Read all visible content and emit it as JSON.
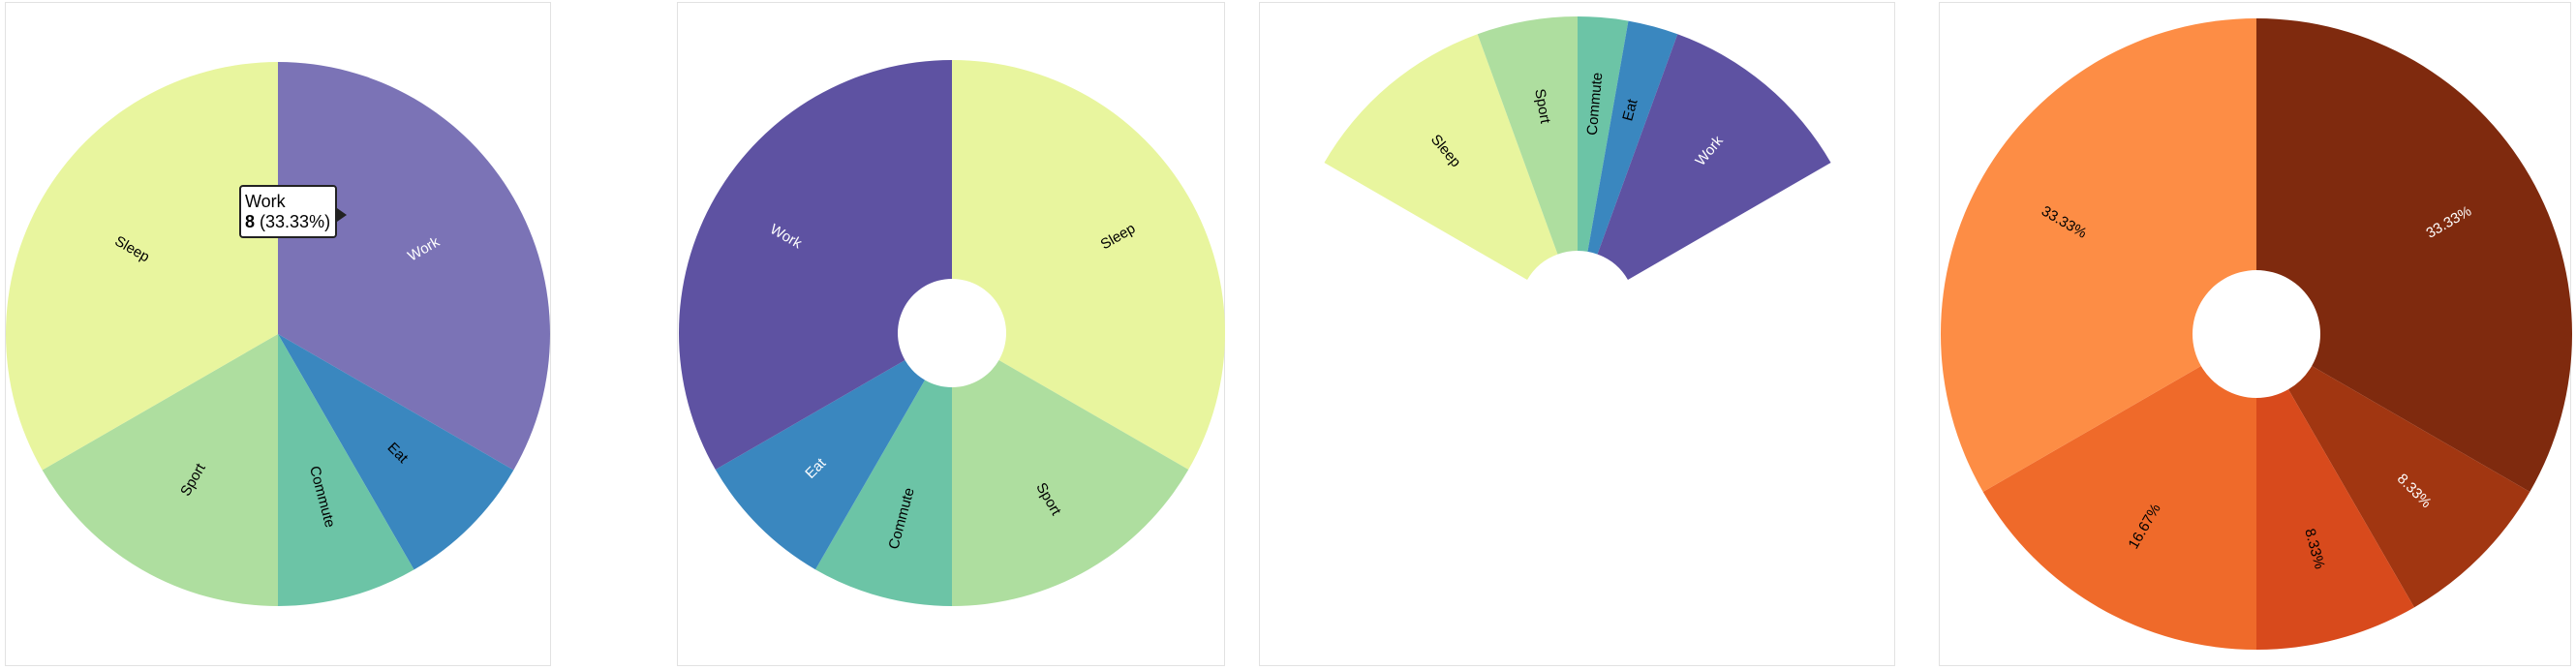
{
  "chart_data": [
    {
      "type": "pie",
      "categories": [
        "Work",
        "Eat",
        "Commute",
        "Sport",
        "Sleep"
      ],
      "values": [
        8,
        2,
        2,
        4,
        8
      ],
      "colors": [
        "#7b73b6",
        "#3a87bf",
        "#6cc4a6",
        "#aede9f",
        "#e8f59e"
      ],
      "label_colors": [
        "#ffffff",
        "#000000",
        "#000000",
        "#000000",
        "#000000"
      ],
      "title": ""
    },
    {
      "type": "pie",
      "categories": [
        "Sleep",
        "Sport",
        "Commute",
        "Eat",
        "Work"
      ],
      "values": [
        8,
        4,
        2,
        2,
        8
      ],
      "colors": [
        "#e8f59e",
        "#aede9f",
        "#6cc4a6",
        "#3a87bf",
        "#5e52a2"
      ],
      "label_colors": [
        "#000000",
        "#000000",
        "#000000",
        "#ffffff",
        "#ffffff"
      ],
      "title": ""
    },
    {
      "type": "pie",
      "categories": [
        "Sleep",
        "Sport",
        "Commute",
        "Eat",
        "Work"
      ],
      "values": [
        8,
        4,
        2,
        2,
        8
      ],
      "colors": [
        "#e8f59e",
        "#aede9f",
        "#6cc4a6",
        "#3a87bf",
        "#5e52a2"
      ],
      "label_colors": [
        "#000000",
        "#000000",
        "#000000",
        "#000000",
        "#ffffff"
      ],
      "start_angle": -60,
      "end_angle": 60,
      "title": ""
    },
    {
      "type": "pie",
      "categories": [
        "",
        "",
        "",
        "",
        ""
      ],
      "values": [
        8,
        2,
        2,
        4,
        8
      ],
      "labels": [
        "33.33%",
        "8.33%",
        "8.33%",
        "16.67%",
        "33.33%"
      ],
      "colors": [
        "#7f2a0e",
        "#a13611",
        "#d84a1c",
        "#ef6a2a",
        "#fd8d45"
      ],
      "label_colors": [
        "#ffffff",
        "#ffffff",
        "#000000",
        "#000000",
        "#000000"
      ],
      "title": ""
    }
  ],
  "tooltip": {
    "series": "Work",
    "value": "8",
    "percent": "(33.33%)"
  }
}
